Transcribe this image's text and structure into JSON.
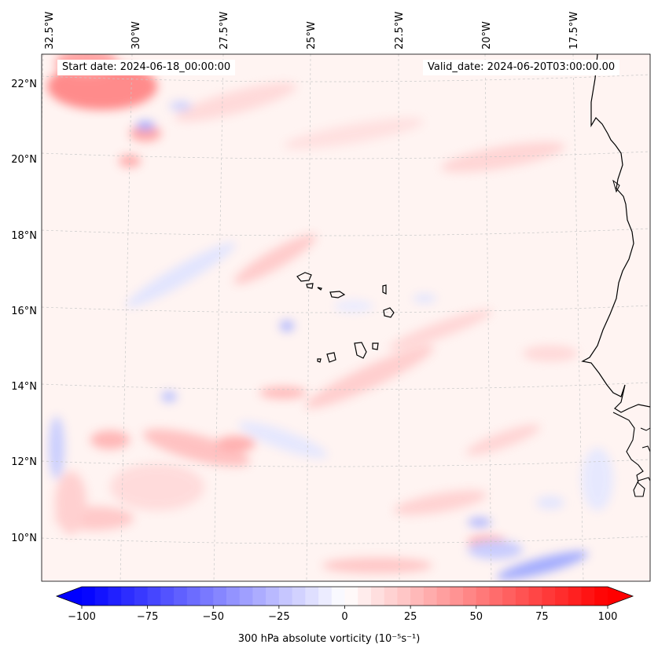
{
  "header": {
    "start_date": "Start date: 2024-06-18_00:00:00",
    "valid_date": "Valid_date: 2024-06-20T03:00:00.00"
  },
  "map": {
    "lon_labels": [
      "32.5°W",
      "30°W",
      "27.5°W",
      "25°W",
      "22.5°W",
      "20°W",
      "17.5°W"
    ],
    "lat_labels": [
      "22°N",
      "20°N",
      "18°N",
      "16°N",
      "14°N",
      "12°N",
      "10°N"
    ],
    "field": "300 hPa absolute vorticity",
    "coastline_color": "#000000",
    "gridline_color": "#bdbdbd"
  },
  "colorbar": {
    "min": -100,
    "max": 100,
    "ticks": [
      "−100",
      "−75",
      "−50",
      "−25",
      "0",
      "25",
      "50",
      "75",
      "100"
    ],
    "tick_values": [
      -100,
      -75,
      -50,
      -25,
      0,
      25,
      50,
      75,
      100
    ],
    "label": "300 hPa absolute vorticity (10⁻⁵s⁻¹)",
    "colormap": "bwr",
    "low_color": "#0000ff",
    "mid_color": "#ffffff",
    "high_color": "#ff0000"
  }
}
